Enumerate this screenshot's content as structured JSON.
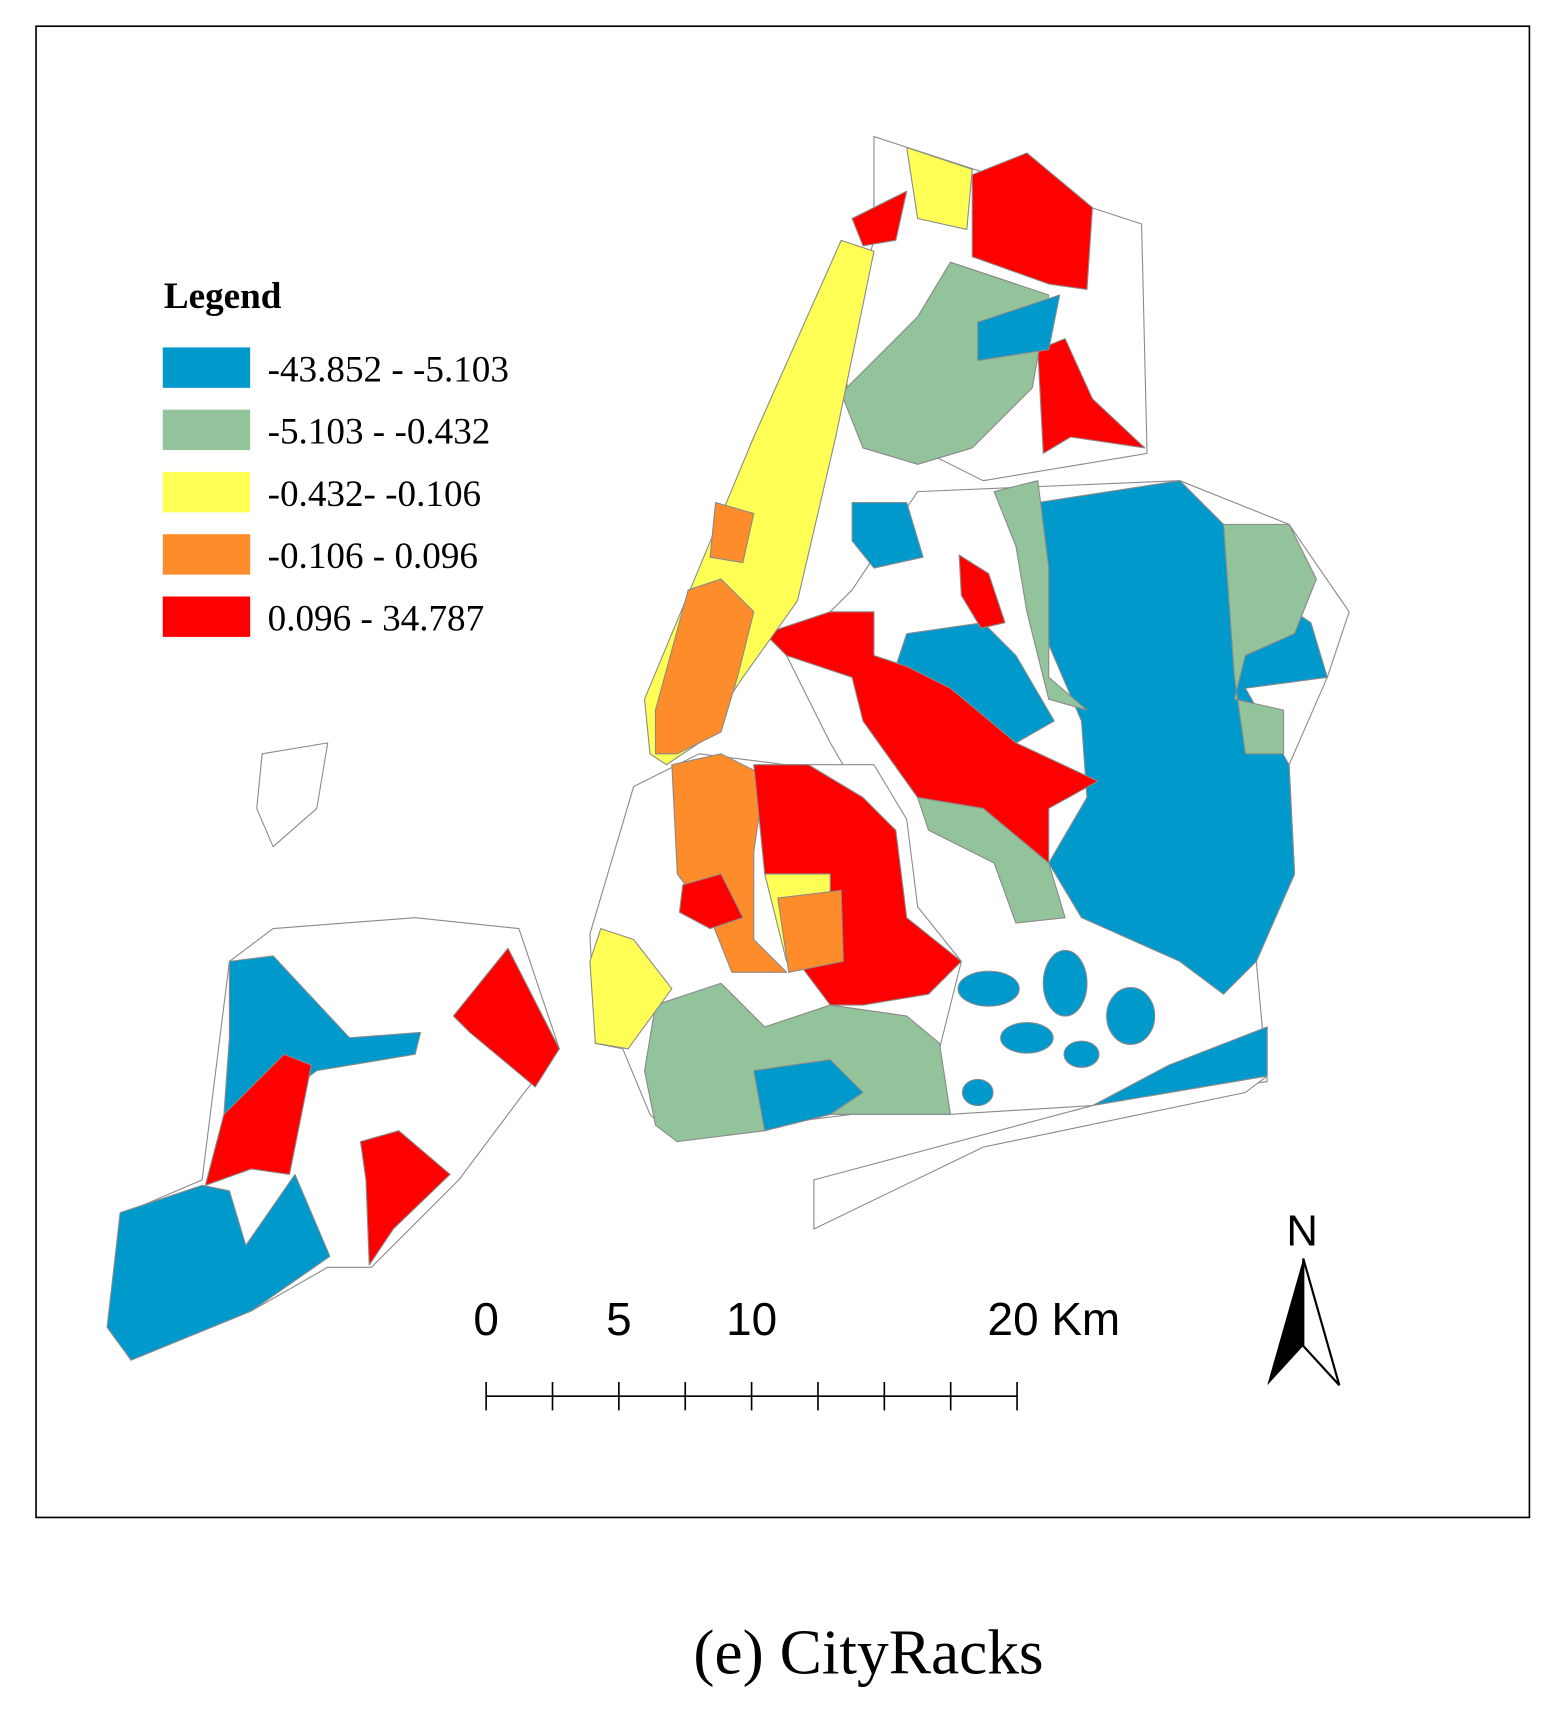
{
  "legend": {
    "title": "Legend",
    "items": [
      {
        "label": "-43.852 - -5.103",
        "color": "#0099cc"
      },
      {
        "label": "-5.103 - -0.432",
        "color": "#93c39a"
      },
      {
        "label": "-0.432- -0.106",
        "color": "#ffff55"
      },
      {
        "label": "-0.106 - 0.096",
        "color": "#ff8c2a"
      },
      {
        "label": "0.096 - 34.787",
        "color": "#ff0000"
      }
    ]
  },
  "scale_bar": {
    "labels": [
      0,
      5,
      10,
      {
        "value": 20,
        "label": "20 Km"
      }
    ],
    "ticks": [
      0,
      2.5,
      5,
      7.5,
      10,
      12.5,
      15,
      17.5,
      20
    ]
  },
  "north_arrow": {
    "label": "N"
  },
  "caption": "(e) CityRacks"
}
